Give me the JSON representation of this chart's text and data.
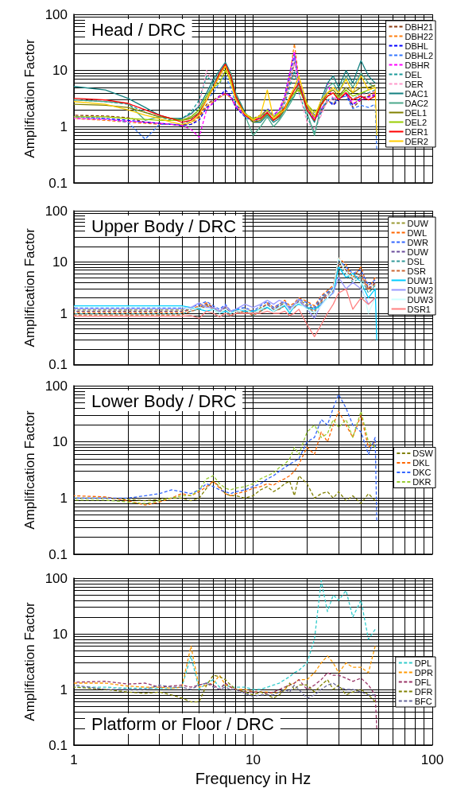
{
  "chart_data": [
    {
      "type": "line",
      "title": "Head / DRC",
      "ylabel": "Amplification Factor",
      "log": "xy",
      "grid": true,
      "legend": "top right",
      "tick_labels": "y",
      "xlim": [
        1,
        100
      ],
      "ylim": [
        0.1,
        100
      ],
      "xticks": [
        1,
        {
          "value": 2,
          "label": null
        },
        {
          "value": 3,
          "label": null
        },
        {
          "value": 4,
          "label": null
        },
        {
          "value": 5,
          "label": null
        },
        {
          "value": 6,
          "label": null
        },
        {
          "value": 7,
          "label": null
        },
        {
          "value": 8,
          "label": null
        },
        {
          "value": 9,
          "label": null
        },
        10,
        {
          "value": 20,
          "label": null
        },
        {
          "value": 30,
          "label": null
        },
        {
          "value": 40,
          "label": null
        },
        {
          "value": 50,
          "label": null
        },
        {
          "value": 60,
          "label": null
        },
        {
          "value": 70,
          "label": null
        },
        {
          "value": 80,
          "label": null
        },
        {
          "value": 90,
          "label": null
        },
        100
      ],
      "yticks": [
        0.1,
        {
          "value": 0.2,
          "label": null
        },
        {
          "value": 0.3,
          "label": null
        },
        {
          "value": 0.4,
          "label": null
        },
        {
          "value": 0.5,
          "label": null
        },
        {
          "value": 0.6,
          "label": null
        },
        {
          "value": 0.7,
          "label": null
        },
        {
          "value": 0.8,
          "label": null
        },
        {
          "value": 0.9,
          "label": null
        },
        1,
        {
          "value": 2,
          "label": null
        },
        {
          "value": 3,
          "label": null
        },
        {
          "value": 4,
          "label": null
        },
        {
          "value": 5,
          "label": null
        },
        {
          "value": 6,
          "label": null
        },
        {
          "value": 7,
          "label": null
        },
        {
          "value": 8,
          "label": null
        },
        {
          "value": 9,
          "label": null
        },
        10,
        {
          "value": 20,
          "label": null
        },
        {
          "value": 30,
          "label": null
        },
        {
          "value": 40,
          "label": null
        },
        {
          "value": 50,
          "label": null
        },
        {
          "value": 60,
          "label": null
        },
        {
          "value": 70,
          "label": null
        },
        {
          "value": 80,
          "label": null
        },
        {
          "value": 90,
          "label": null
        },
        100
      ],
      "x": [
        1,
        1.5,
        2,
        2.5,
        3,
        3.5,
        4,
        4.5,
        5,
        5.5,
        6,
        6.5,
        7,
        7.5,
        8,
        9,
        10,
        11,
        12,
        13,
        14,
        15,
        16,
        17,
        18,
        20,
        22,
        24,
        26,
        28,
        30,
        33,
        36,
        40,
        44,
        48,
        49
      ],
      "series": [
        {
          "name": "DBH21",
          "color": "#8b3a0f",
          "line_style": "dashed",
          "values": [
            1.6,
            1.55,
            1.45,
            1.2,
            1.15,
            1.1,
            1.05,
            1.2,
            1.5,
            2.5,
            3,
            3.5,
            3.8,
            3.5,
            2.5,
            1.7,
            1.4,
            1.6,
            2,
            1.5,
            1.8,
            3,
            6,
            14,
            6,
            2.5,
            1.6,
            2,
            3,
            2.5,
            3,
            4,
            2.2,
            3,
            3.5,
            4,
            null
          ]
        },
        {
          "name": "DBH22",
          "color": "#ff7f0e",
          "line_style": "dashed",
          "values": [
            1.4,
            1.3,
            1.2,
            1.15,
            1.1,
            1.1,
            1.05,
            1.1,
            1.4,
            2.3,
            2.8,
            3.3,
            3.8,
            3.3,
            2.3,
            1.6,
            1.3,
            1.5,
            2,
            1.4,
            1.7,
            3.2,
            8,
            30,
            7,
            2.2,
            1.5,
            1.8,
            2.8,
            2.6,
            3.2,
            4,
            2.5,
            3.2,
            3.6,
            4.2,
            null
          ]
        },
        {
          "name": "DBHL",
          "color": "#0000ff",
          "line_style": "dashed",
          "values": [
            1.5,
            1.4,
            1.3,
            1.2,
            1.15,
            1.1,
            1.05,
            1.1,
            1.3,
            2.2,
            2.6,
            3.5,
            4.5,
            3.5,
            2.2,
            1.5,
            1.3,
            1.5,
            2.1,
            1.6,
            2,
            3.5,
            9,
            20,
            6,
            2.3,
            1.4,
            1.8,
            3,
            2.4,
            3,
            3.8,
            2.4,
            3.3,
            3.4,
            3.6,
            null
          ]
        },
        {
          "name": "DBHL2",
          "color": "#3377ff",
          "line_style": "dashed",
          "values": [
            1.5,
            1.4,
            1.2,
            0.6,
            1.1,
            1.1,
            1.1,
            1.3,
            1.8,
            3,
            4,
            6,
            8,
            5,
            2.5,
            1.5,
            1.2,
            1.4,
            2,
            1.5,
            1.8,
            3,
            7,
            17,
            6,
            2.5,
            1.6,
            2.1,
            2.9,
            2.6,
            3.2,
            3.5,
            2.1,
            2.4,
            2.2,
            2.5,
            0.4
          ]
        },
        {
          "name": "DBHR",
          "color": "#ff00ff",
          "line_style": "dashed",
          "values": [
            1.4,
            1.35,
            1.25,
            1.2,
            1.15,
            1.1,
            1.05,
            0.9,
            0.65,
            2,
            2.7,
            3.5,
            4,
            3.3,
            2.3,
            1.6,
            1.3,
            1.5,
            2,
            1.6,
            2,
            3.5,
            9,
            22,
            6,
            2,
            1.4,
            1.8,
            6,
            3,
            3.5,
            4,
            2.6,
            3,
            3.3,
            3.8,
            null
          ]
        },
        {
          "name": "DEL",
          "color": "#1a9a9a",
          "line_style": "dashed",
          "values": [
            3,
            2.8,
            2.5,
            1.8,
            1.5,
            1.3,
            1.4,
            1.8,
            3,
            8,
            6,
            9,
            12,
            8,
            3.5,
            1.7,
            1.2,
            1.3,
            1.8,
            1.3,
            1.6,
            2.6,
            5,
            10,
            4,
            1.5,
            0.8,
            1.8,
            3,
            3.2,
            3.5,
            4.5,
            3,
            4,
            4,
            4.5,
            null
          ]
        },
        {
          "name": "DER",
          "color": "#ff99cc",
          "line_style": "dashed",
          "values": [
            3,
            2.9,
            2.6,
            2,
            1.6,
            1.4,
            1.3,
            1.6,
            2.5,
            10,
            6,
            8,
            10,
            7,
            3,
            1.6,
            1.2,
            1.3,
            1.8,
            1.4,
            1.7,
            2.8,
            6,
            15,
            4,
            1.2,
            0.9,
            1.6,
            3,
            3,
            3.3,
            4.2,
            3,
            3.8,
            3.8,
            4.3,
            null
          ]
        },
        {
          "name": "DAC1",
          "color": "#138080",
          "line_style": "solid",
          "values": [
            5.2,
            4.5,
            3.2,
            2.2,
            1.6,
            1.4,
            1.4,
            1.7,
            2.3,
            4,
            7,
            10,
            14,
            9,
            4,
            1.8,
            1.2,
            1.2,
            1.6,
            1.2,
            1.4,
            2,
            2.8,
            3.5,
            6,
            2,
            1.2,
            3,
            6,
            8,
            5,
            10,
            6,
            15,
            8,
            6,
            null
          ]
        },
        {
          "name": "DAC2",
          "color": "#4aa88a",
          "line_style": "solid",
          "values": [
            3,
            2.8,
            2.6,
            1.3,
            1.5,
            1.4,
            1.3,
            1.5,
            2,
            3.5,
            6,
            9,
            13,
            9,
            4,
            1.6,
            0.7,
            1,
            1.5,
            1,
            1.3,
            1.8,
            2.5,
            3.5,
            6,
            1.8,
            0.7,
            2.5,
            5,
            6,
            4,
            8,
            5,
            9,
            6,
            5,
            null
          ]
        },
        {
          "name": "DEL1",
          "color": "#808000",
          "line_style": "solid",
          "values": [
            2.5,
            2.4,
            2.2,
            1.8,
            1.5,
            1.4,
            1.3,
            1.4,
            1.8,
            3,
            5,
            8,
            12,
            8,
            3.5,
            1.7,
            1.2,
            1.3,
            1.7,
            1.3,
            1.5,
            2,
            3,
            4,
            5,
            2.2,
            1.5,
            2.5,
            4,
            4.5,
            3.5,
            5,
            4,
            5,
            5,
            5.5,
            null
          ]
        },
        {
          "name": "DEL2",
          "color": "#99cc00",
          "line_style": "solid",
          "values": [
            1.5,
            1.5,
            1.4,
            1.35,
            1.3,
            1.3,
            1.3,
            1.5,
            2,
            3.5,
            5,
            6,
            10,
            7,
            3,
            1.7,
            1.4,
            1.5,
            2,
            1.5,
            1.8,
            2.2,
            3,
            4,
            4.5,
            2.5,
            1.8,
            2.4,
            3.5,
            4,
            3.3,
            4.5,
            3.5,
            4,
            4.5,
            5,
            null
          ]
        },
        {
          "name": "DER1",
          "color": "#ff0000",
          "line_style": "solid",
          "values": [
            3.2,
            3,
            2.6,
            2,
            1.6,
            1.4,
            1.2,
            1.3,
            1.7,
            3,
            5,
            9,
            13,
            8,
            3.5,
            1.6,
            1.3,
            1.4,
            1.8,
            1.3,
            1.6,
            2.2,
            3.2,
            4.5,
            6,
            2,
            1.3,
            2.5,
            3.5,
            4,
            3,
            4,
            3,
            3.5,
            3,
            3.5,
            null
          ]
        },
        {
          "name": "DER2",
          "color": "#ffcc00",
          "line_style": "solid",
          "values": [
            2.8,
            2.5,
            2,
            1.6,
            1.4,
            1.2,
            1.1,
            1.2,
            1.6,
            3,
            5,
            8,
            12,
            6,
            3,
            1.7,
            1.3,
            1.6,
            4.5,
            1.4,
            1.7,
            2,
            3.5,
            5,
            8,
            2.5,
            1.5,
            3,
            4,
            5,
            4,
            7,
            4,
            8,
            4.5,
            5,
            0.7
          ]
        }
      ]
    },
    {
      "type": "line",
      "title": "Upper Body / DRC",
      "ylabel": "Amplification Factor",
      "log": "xy",
      "grid": true,
      "legend": "top right",
      "tick_labels": "y",
      "xlim": [
        1,
        100
      ],
      "ylim": [
        0.1,
        100
      ],
      "xticks": [
        1,
        {
          "value": 2,
          "label": null
        },
        {
          "value": 3,
          "label": null
        },
        {
          "value": 4,
          "label": null
        },
        {
          "value": 5,
          "label": null
        },
        {
          "value": 6,
          "label": null
        },
        {
          "value": 7,
          "label": null
        },
        {
          "value": 8,
          "label": null
        },
        {
          "value": 9,
          "label": null
        },
        10,
        {
          "value": 20,
          "label": null
        },
        {
          "value": 30,
          "label": null
        },
        {
          "value": 40,
          "label": null
        },
        {
          "value": 50,
          "label": null
        },
        {
          "value": 60,
          "label": null
        },
        {
          "value": 70,
          "label": null
        },
        {
          "value": 80,
          "label": null
        },
        {
          "value": 90,
          "label": null
        },
        100
      ],
      "yticks": [
        0.1,
        {
          "value": 0.2,
          "label": null
        },
        {
          "value": 0.3,
          "label": null
        },
        {
          "value": 0.4,
          "label": null
        },
        {
          "value": 0.5,
          "label": null
        },
        {
          "value": 0.6,
          "label": null
        },
        {
          "value": 0.7,
          "label": null
        },
        {
          "value": 0.8,
          "label": null
        },
        {
          "value": 0.9,
          "label": null
        },
        1,
        {
          "value": 2,
          "label": null
        },
        {
          "value": 3,
          "label": null
        },
        {
          "value": 4,
          "label": null
        },
        {
          "value": 5,
          "label": null
        },
        {
          "value": 6,
          "label": null
        },
        {
          "value": 7,
          "label": null
        },
        {
          "value": 8,
          "label": null
        },
        {
          "value": 9,
          "label": null
        },
        10,
        {
          "value": 20,
          "label": null
        },
        {
          "value": 30,
          "label": null
        },
        {
          "value": 40,
          "label": null
        },
        {
          "value": 50,
          "label": null
        },
        {
          "value": 60,
          "label": null
        },
        {
          "value": 70,
          "label": null
        },
        {
          "value": 80,
          "label": null
        },
        {
          "value": 90,
          "label": null
        },
        100
      ],
      "x": [
        1,
        1.5,
        2,
        2.5,
        3,
        3.5,
        4,
        4.5,
        5,
        5.5,
        6,
        6.5,
        7,
        7.5,
        8,
        9,
        10,
        11,
        12,
        13,
        14,
        15,
        16,
        17,
        18,
        20,
        22,
        24,
        26,
        28,
        30,
        33,
        36,
        40,
        44,
        48,
        49
      ],
      "series": [
        {
          "name": "DUW",
          "color": "#999933",
          "line_style": "dashed",
          "values": [
            1.16,
            1.16,
            1.16,
            1.16,
            1.16,
            1.16,
            1.16,
            1.2,
            1.3,
            1.5,
            1.2,
            1.1,
            1.3,
            1,
            1.1,
            1.2,
            1,
            1.3,
            1.5,
            1.2,
            1.4,
            1.6,
            1.3,
            1.5,
            1.8,
            1.5,
            1.2,
            2,
            2.5,
            3,
            10,
            8,
            5,
            6,
            3,
            3.8,
            null
          ]
        },
        {
          "name": "DWL",
          "color": "#ff6600",
          "line_style": "dashed",
          "values": [
            1.04,
            1.04,
            1.04,
            1.04,
            1.04,
            1.04,
            1.04,
            1.2,
            1.4,
            1.6,
            1.3,
            1.1,
            1.4,
            1.1,
            1.1,
            1.2,
            1.1,
            1.2,
            1.6,
            1.3,
            1.5,
            1.8,
            1.4,
            1.6,
            2,
            1.7,
            1.4,
            2.2,
            2.8,
            3.5,
            12,
            9,
            5,
            8,
            3,
            5,
            null
          ]
        },
        {
          "name": "DWR",
          "color": "#3366ff",
          "line_style": "dashed",
          "values": [
            1.28,
            1.28,
            1.28,
            1.28,
            1.28,
            1.28,
            1.28,
            1.3,
            1.5,
            1.7,
            1.4,
            1.2,
            1.5,
            1.1,
            1.2,
            1.3,
            1.1,
            1.4,
            1.7,
            1.3,
            1.5,
            1.7,
            1.3,
            1.5,
            1.9,
            1.6,
            1.3,
            2.1,
            2.6,
            3.2,
            11,
            8,
            6,
            7,
            3.5,
            4.5,
            null
          ]
        },
        {
          "name": "DUW",
          "color": "#6a4c9c",
          "line_style": "dashed",
          "values": [
            1.1,
            1.1,
            1.1,
            1.1,
            1.1,
            1.1,
            1.1,
            1.2,
            1.3,
            1.5,
            1.3,
            1.1,
            1.3,
            1,
            1.1,
            1.2,
            1,
            1.2,
            1.5,
            1.2,
            1.4,
            1.5,
            1.2,
            1.4,
            1.7,
            1.4,
            1.2,
            1.8,
            2.4,
            2.8,
            9,
            7,
            4.5,
            6,
            3,
            4,
            null
          ]
        },
        {
          "name": "DSL",
          "color": "#339999",
          "line_style": "dashed",
          "values": [
            0.98,
            0.98,
            0.98,
            0.98,
            0.98,
            0.98,
            0.98,
            1.1,
            1.2,
            1.4,
            1.2,
            1,
            1.2,
            0.9,
            1,
            1.1,
            0.9,
            1.1,
            1.3,
            1.1,
            1.2,
            1.4,
            1.1,
            1.3,
            1.6,
            1.3,
            1,
            1.6,
            2,
            2.5,
            8,
            6,
            4,
            5,
            2.5,
            3.5,
            null
          ]
        },
        {
          "name": "DSR",
          "color": "#cc6633",
          "line_style": "dashed",
          "values": [
            0.93,
            0.93,
            0.93,
            0.93,
            0.93,
            0.93,
            0.93,
            1.1,
            1.2,
            1.4,
            1.2,
            1,
            1.2,
            0.9,
            1,
            1.1,
            0.9,
            1.1,
            1.3,
            1.1,
            1.2,
            1.4,
            1.1,
            1.3,
            1.6,
            1.3,
            1.1,
            1.7,
            2.2,
            2.7,
            9,
            7,
            4.5,
            5.5,
            2.8,
            3.8,
            null
          ]
        },
        {
          "name": "DUW1",
          "color": "#00ccff",
          "line_style": "solid",
          "values": [
            1.4,
            1.4,
            1.4,
            1.4,
            1.4,
            1.4,
            1.4,
            1.3,
            1.2,
            1.1,
            1.2,
            1,
            1.1,
            1,
            1.2,
            1.1,
            1.1,
            1.2,
            1.3,
            1.1,
            1.3,
            1.4,
            1,
            1.4,
            1.5,
            1.3,
            1.2,
            1.5,
            2,
            2.5,
            8,
            5,
            6,
            4,
            2,
            3,
            0.3
          ]
        },
        {
          "name": "DUW2",
          "color": "#9999ff",
          "line_style": "solid",
          "values": [
            1.22,
            1.22,
            1.22,
            1.22,
            1.22,
            1.22,
            1.22,
            1.3,
            1.6,
            1.3,
            1.3,
            1.1,
            1.4,
            1.1,
            1.2,
            1.5,
            1.3,
            1.5,
            1.8,
            1.5,
            1.8,
            1.6,
            1.2,
            1.5,
            1.9,
            1.2,
            0.8,
            1.5,
            2,
            2.5,
            5,
            3,
            4,
            3,
            1.5,
            2,
            null
          ]
        },
        {
          "name": "DUW3",
          "color": "#ccffff",
          "line_style": "solid",
          "values": [
            1.34,
            1.34,
            1.34,
            1.34,
            1.34,
            1.34,
            1.34,
            1.2,
            1.3,
            1.2,
            1.2,
            1,
            1.2,
            1,
            1.1,
            1.2,
            1,
            1.2,
            1.4,
            1.1,
            1.3,
            1.5,
            1.1,
            1.4,
            1.6,
            1.2,
            1,
            1.4,
            2,
            3,
            12,
            6,
            5,
            4,
            1,
            2,
            null
          ]
        },
        {
          "name": "DSR1",
          "color": "#ff8080",
          "line_style": "solid",
          "values": [
            0.88,
            0.88,
            0.88,
            0.88,
            0.88,
            0.88,
            0.88,
            0.9,
            0.8,
            1.1,
            1,
            0.85,
            1,
            0.9,
            1,
            1,
            1,
            1,
            1.1,
            1,
            1,
            1.1,
            0.9,
            1,
            1.2,
            0.6,
            0.35,
            0.6,
            1,
            1.5,
            2.5,
            3,
            1.2,
            2,
            1.5,
            2,
            null
          ]
        }
      ]
    },
    {
      "type": "line",
      "title": "Lower Body / DRC",
      "ylabel": "Amplification Factor",
      "log": "xy",
      "grid": true,
      "legend": "right",
      "tick_labels": "y",
      "xlim": [
        1,
        100
      ],
      "ylim": [
        0.1,
        100
      ],
      "xticks": [
        1,
        {
          "value": 2,
          "label": null
        },
        {
          "value": 3,
          "label": null
        },
        {
          "value": 4,
          "label": null
        },
        {
          "value": 5,
          "label": null
        },
        {
          "value": 6,
          "label": null
        },
        {
          "value": 7,
          "label": null
        },
        {
          "value": 8,
          "label": null
        },
        {
          "value": 9,
          "label": null
        },
        10,
        {
          "value": 20,
          "label": null
        },
        {
          "value": 30,
          "label": null
        },
        {
          "value": 40,
          "label": null
        },
        {
          "value": 50,
          "label": null
        },
        {
          "value": 60,
          "label": null
        },
        {
          "value": 70,
          "label": null
        },
        {
          "value": 80,
          "label": null
        },
        {
          "value": 90,
          "label": null
        },
        100
      ],
      "yticks": [
        0.1,
        {
          "value": 0.2,
          "label": null
        },
        {
          "value": 0.3,
          "label": null
        },
        {
          "value": 0.4,
          "label": null
        },
        {
          "value": 0.5,
          "label": null
        },
        {
          "value": 0.6,
          "label": null
        },
        {
          "value": 0.7,
          "label": null
        },
        {
          "value": 0.8,
          "label": null
        },
        {
          "value": 0.9,
          "label": null
        },
        1,
        {
          "value": 2,
          "label": null
        },
        {
          "value": 3,
          "label": null
        },
        {
          "value": 4,
          "label": null
        },
        {
          "value": 5,
          "label": null
        },
        {
          "value": 6,
          "label": null
        },
        {
          "value": 7,
          "label": null
        },
        {
          "value": 8,
          "label": null
        },
        {
          "value": 9,
          "label": null
        },
        10,
        {
          "value": 20,
          "label": null
        },
        {
          "value": 30,
          "label": null
        },
        {
          "value": 40,
          "label": null
        },
        {
          "value": 50,
          "label": null
        },
        {
          "value": 60,
          "label": null
        },
        {
          "value": 70,
          "label": null
        },
        {
          "value": 80,
          "label": null
        },
        {
          "value": 90,
          "label": null
        },
        100
      ],
      "x": [
        1,
        1.5,
        2,
        2.5,
        3,
        3.5,
        4,
        4.5,
        5,
        5.5,
        6,
        6.5,
        7,
        7.5,
        8,
        9,
        10,
        11,
        12,
        13,
        14,
        15,
        16,
        17,
        18,
        20,
        22,
        24,
        26,
        28,
        30,
        33,
        36,
        40,
        44,
        48,
        49
      ],
      "series": [
        {
          "name": "DSW",
          "color": "#808000",
          "line_style": "dashed",
          "values": [
            1,
            1,
            0.95,
            0.9,
            0.95,
            1,
            1,
            0.9,
            1,
            1.5,
            2,
            1.6,
            1.2,
            1.1,
            1.1,
            1,
            1.1,
            1.4,
            1.6,
            1.3,
            1.5,
            1.8,
            2,
            1.1,
            2.5,
            1.8,
            1,
            1.2,
            1.3,
            1,
            1.3,
            0.9,
            1.1,
            0.8,
            1.2,
            0.9,
            null
          ]
        },
        {
          "name": "DKL",
          "color": "#ff6600",
          "line_style": "dashed",
          "values": [
            1.1,
            1.05,
            0.9,
            0.75,
            0.85,
            1,
            1.2,
            1.1,
            1.3,
            1.6,
            2,
            1.5,
            1.2,
            1.1,
            1.2,
            1.3,
            1.5,
            1.6,
            1.8,
            1.7,
            2,
            2.2,
            2.5,
            3,
            4,
            8,
            6,
            15,
            10,
            20,
            35,
            20,
            12,
            30,
            8,
            10,
            null
          ]
        },
        {
          "name": "DKC",
          "color": "#3366ff",
          "line_style": "dashed",
          "values": [
            1,
            1,
            1,
            1.1,
            1.2,
            1.4,
            1.3,
            1.2,
            1.4,
            1.8,
            1.6,
            1.4,
            1.3,
            1.2,
            1.3,
            1.4,
            1.6,
            1.8,
            2.2,
            2.5,
            3,
            3.5,
            4,
            4.5,
            5,
            10,
            12,
            25,
            20,
            40,
            70,
            40,
            20,
            15,
            6,
            12,
            0.4
          ]
        },
        {
          "name": "DKR",
          "color": "#99cc33",
          "line_style": "dashed",
          "values": [
            0.92,
            0.92,
            0.85,
            0.8,
            0.9,
            1,
            1.1,
            1.1,
            1.4,
            2.2,
            2.5,
            1.8,
            1.5,
            1.4,
            1.5,
            1.6,
            1.8,
            2.2,
            2.5,
            2.8,
            3.5,
            4,
            5,
            8,
            6,
            15,
            20,
            12,
            14,
            25,
            18,
            25,
            12,
            35,
            10,
            8,
            null
          ]
        }
      ]
    },
    {
      "type": "line",
      "title": "Platform or Floor / DRC",
      "xlabel": "Frequency in Hz",
      "ylabel": "Amplification Factor",
      "log": "xy",
      "grid": true,
      "legend": "right",
      "xlim": [
        1,
        100
      ],
      "ylim": [
        0.1,
        100
      ],
      "xticks": [
        1,
        {
          "value": 2,
          "label": null
        },
        {
          "value": 3,
          "label": null
        },
        {
          "value": 4,
          "label": null
        },
        {
          "value": 5,
          "label": null
        },
        {
          "value": 6,
          "label": null
        },
        {
          "value": 7,
          "label": null
        },
        {
          "value": 8,
          "label": null
        },
        {
          "value": 9,
          "label": null
        },
        10,
        {
          "value": 20,
          "label": null
        },
        {
          "value": 30,
          "label": null
        },
        {
          "value": 40,
          "label": null
        },
        {
          "value": 50,
          "label": null
        },
        {
          "value": 60,
          "label": null
        },
        {
          "value": 70,
          "label": null
        },
        {
          "value": 80,
          "label": null
        },
        {
          "value": 90,
          "label": null
        },
        100
      ],
      "yticks": [
        0.1,
        {
          "value": 0.2,
          "label": null
        },
        {
          "value": 0.3,
          "label": null
        },
        {
          "value": 0.4,
          "label": null
        },
        {
          "value": 0.5,
          "label": null
        },
        {
          "value": 0.6,
          "label": null
        },
        {
          "value": 0.7,
          "label": null
        },
        {
          "value": 0.8,
          "label": null
        },
        {
          "value": 0.9,
          "label": null
        },
        1,
        {
          "value": 2,
          "label": null
        },
        {
          "value": 3,
          "label": null
        },
        {
          "value": 4,
          "label": null
        },
        {
          "value": 5,
          "label": null
        },
        {
          "value": 6,
          "label": null
        },
        {
          "value": 7,
          "label": null
        },
        {
          "value": 8,
          "label": null
        },
        {
          "value": 9,
          "label": null
        },
        10,
        {
          "value": 20,
          "label": null
        },
        {
          "value": 30,
          "label": null
        },
        {
          "value": 40,
          "label": null
        },
        {
          "value": 50,
          "label": null
        },
        {
          "value": 60,
          "label": null
        },
        {
          "value": 70,
          "label": null
        },
        {
          "value": 80,
          "label": null
        },
        {
          "value": 90,
          "label": null
        },
        100
      ],
      "x": [
        1,
        1.5,
        2,
        2.5,
        3,
        3.5,
        4,
        4.5,
        5,
        5.5,
        6,
        6.5,
        7,
        7.5,
        8,
        9,
        10,
        11,
        12,
        13,
        14,
        15,
        16,
        17,
        18,
        20,
        22,
        24,
        26,
        28,
        30,
        33,
        36,
        40,
        44,
        48,
        49
      ],
      "series": [
        {
          "name": "DPL",
          "color": "#33cccc",
          "line_style": "dashed",
          "values": [
            1.1,
            1.1,
            1.05,
            1.05,
            1.05,
            1.05,
            1.1,
            4,
            1,
            1.3,
            1.5,
            1.1,
            1.2,
            1.1,
            1.1,
            1.1,
            1,
            1,
            1.1,
            1.2,
            1.3,
            1.5,
            1.7,
            2,
            2.2,
            3,
            8,
            90,
            25,
            50,
            40,
            60,
            20,
            40,
            8,
            12,
            null
          ]
        },
        {
          "name": "DPR",
          "color": "#ff9900",
          "line_style": "dashed",
          "values": [
            1.3,
            1.3,
            1.15,
            1.1,
            1.1,
            1.05,
            1.1,
            6,
            1.1,
            1.2,
            1.3,
            1.8,
            1.2,
            1.1,
            1,
            1,
            0.9,
            0.9,
            0.9,
            0.85,
            0.9,
            1,
            1.2,
            1.3,
            1.5,
            1.5,
            2,
            3,
            4,
            3,
            2,
            3,
            2.5,
            2.5,
            2,
            6,
            null
          ]
        },
        {
          "name": "DFL",
          "color": "#993366",
          "line_style": "dashed",
          "values": [
            1.35,
            1.4,
            1.25,
            1.3,
            1.1,
            1.15,
            1.2,
            1.1,
            1.2,
            1.3,
            1.2,
            1,
            1.3,
            1.1,
            1,
            0.9,
            0.9,
            0.9,
            0.85,
            0.9,
            1,
            1.1,
            1.2,
            1.3,
            1.5,
            1,
            1.2,
            1.5,
            2,
            1.8,
            1.8,
            1.6,
            1.4,
            1.6,
            1.2,
            0.8,
            0.2
          ]
        },
        {
          "name": "DFR",
          "color": "#808000",
          "line_style": "dashed",
          "values": [
            1.1,
            1,
            0.9,
            0.85,
            0.9,
            0.8,
            0.7,
            0.6,
            0.6,
            1.2,
            1.8,
            1.7,
            1.5,
            1.2,
            1,
            0.9,
            0.8,
            0.9,
            0.8,
            0.7,
            0.8,
            1,
            1.3,
            1,
            1.2,
            1.2,
            0.9,
            1.2,
            1.5,
            1,
            1.2,
            0.8,
            0.9,
            1,
            0.8,
            0.6,
            null
          ]
        },
        {
          "name": "BFC",
          "color": "#666699",
          "line_style": "dashed",
          "values": [
            1.2,
            1,
            1,
            1,
            1.2,
            1.1,
            1.1,
            1,
            1.2,
            1.3,
            1.1,
            1,
            1.1,
            1,
            1,
            0.85,
            0.75,
            0.8,
            0.8,
            0.8,
            0.9,
            1,
            0.9,
            1.2,
            1,
            0.7,
            0.8,
            1,
            1.2,
            1.3,
            1.1,
            1,
            1,
            0.9,
            0.8,
            0.8,
            null
          ]
        }
      ]
    }
  ]
}
